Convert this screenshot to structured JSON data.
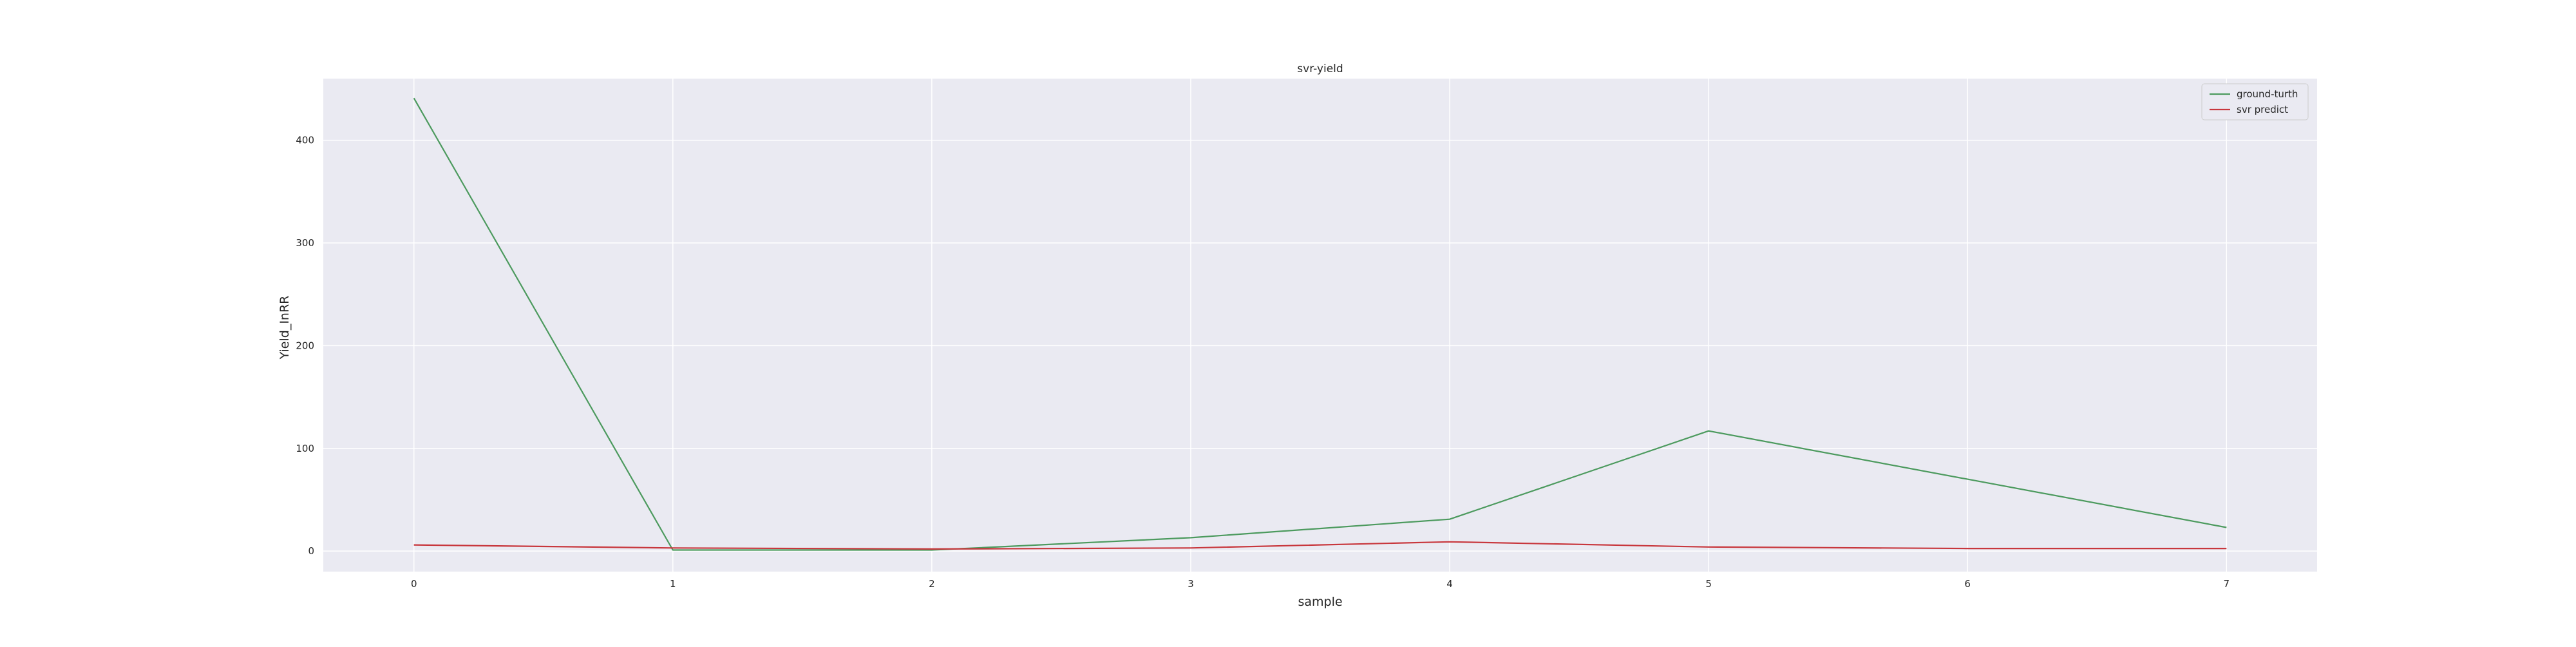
{
  "chart_data": {
    "type": "line",
    "title": "svr-yield",
    "xlabel": "sample",
    "ylabel": "Yield_InRR",
    "x": [
      0,
      1,
      2,
      3,
      4,
      5,
      6,
      7
    ],
    "xticks": [
      0,
      1,
      2,
      3,
      4,
      5,
      6,
      7
    ],
    "yticks": [
      0,
      100,
      200,
      300,
      400
    ],
    "xlim": [
      -0.35,
      7.35
    ],
    "ylim": [
      -20,
      460
    ],
    "grid": true,
    "legend_position": "top-right",
    "series": [
      {
        "name": "ground-turth",
        "color": "#4c9a5e",
        "values": [
          441,
          1,
          1,
          13,
          31,
          117,
          70,
          23
        ]
      },
      {
        "name": "svr predict",
        "color": "#c8373d",
        "values": [
          6,
          3,
          2,
          3,
          9,
          4,
          2.5,
          2.5
        ]
      }
    ],
    "colors": {
      "plot_background": "#eaeaf2",
      "grid": "#ffffff"
    }
  }
}
